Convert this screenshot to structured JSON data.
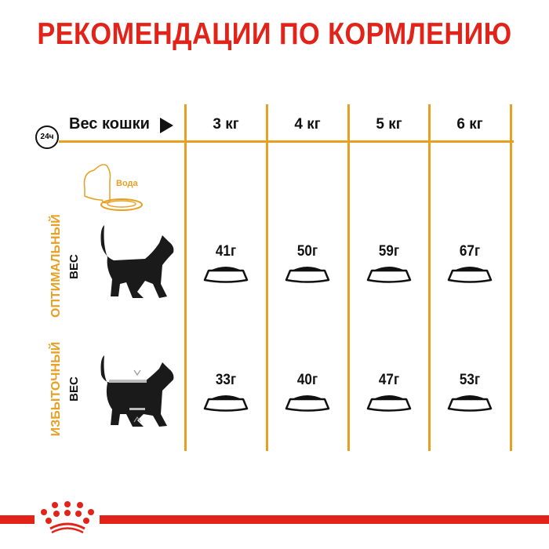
{
  "title": "РЕКОМЕНДАЦИИ ПО КОРМЛЕНИЮ",
  "header": {
    "clock_label": "24ч",
    "weight_label": "Вес кошки",
    "columns": [
      "3 кг",
      "4 кг",
      "5 кг",
      "6 кг"
    ]
  },
  "water_label": "Вода",
  "rows": [
    {
      "label": "ОПТИМАЛЬНЫЙ",
      "sublabel": "ВЕС",
      "values": [
        "41г",
        "50г",
        "59г",
        "67г"
      ]
    },
    {
      "label": "ИЗБЫТОЧНЫЙ",
      "sublabel": "ВЕС",
      "values": [
        "33г",
        "40г",
        "47г",
        "53г"
      ]
    }
  ],
  "colors": {
    "title": "#e2231a",
    "accent": "#e8a023",
    "brand": "#e2231a"
  },
  "brand_logo": "Royal Canin crown"
}
